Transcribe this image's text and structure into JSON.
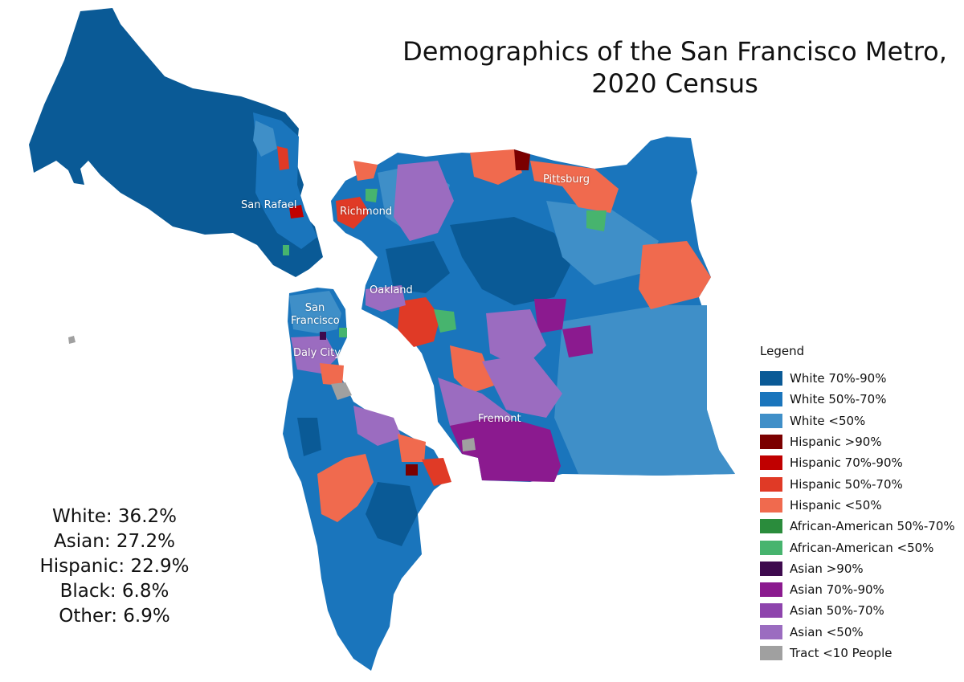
{
  "title": {
    "line1": "Demographics of the San Francisco Metro,",
    "line2": "2020 Census"
  },
  "legend": {
    "heading": "Legend",
    "items": [
      {
        "label": "White 70%-90%",
        "color": "#0a5a96"
      },
      {
        "label": "White 50%-70%",
        "color": "#1a75bc"
      },
      {
        "label": "White <50%",
        "color": "#3f8fc8"
      },
      {
        "label": "Hispanic >90%",
        "color": "#7b0000"
      },
      {
        "label": "Hispanic 70%-90%",
        "color": "#c00000"
      },
      {
        "label": "Hispanic 50%-70%",
        "color": "#e03a26"
      },
      {
        "label": "Hispanic <50%",
        "color": "#f06a4e"
      },
      {
        "label": "African-American 50%-70%",
        "color": "#2a8c3c"
      },
      {
        "label": "African-American <50%",
        "color": "#47b46e"
      },
      {
        "label": "Asian >90%",
        "color": "#3e0a4e"
      },
      {
        "label": "Asian 70%-90%",
        "color": "#8b1a8f"
      },
      {
        "label": "Asian 50%-70%",
        "color": "#8e44ad"
      },
      {
        "label": "Asian <50%",
        "color": "#9b6cc0"
      },
      {
        "label": "Tract <10 People",
        "color": "#a0a0a0"
      }
    ]
  },
  "stats": [
    "White: 36.2%",
    "Asian: 27.2%",
    "Hispanic: 22.9%",
    "Black: 6.8%",
    "Other: 6.9%"
  ],
  "cities": {
    "san_rafael": "San Rafael",
    "richmond": "Richmond",
    "pittsburg": "Pittsburg",
    "oakland": "Oakland",
    "san_francisco_1": "San",
    "san_francisco_2": "Francisco",
    "daly_city": "Daly City",
    "fremont": "Fremont"
  }
}
